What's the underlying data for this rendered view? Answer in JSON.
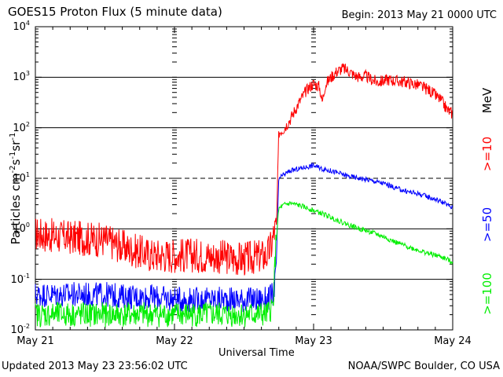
{
  "header": {
    "title": "GOES15 Proton Flux (5 minute data)",
    "begin": "Begin: 2013 May 21 0000 UTC"
  },
  "footer": {
    "updated": "Updated 2013 May 23 23:56:02 UTC",
    "credit": "NOAA/SWPC Boulder, CO USA"
  },
  "colors": {
    "ge10": "#ff0000",
    "ge50": "#0000ff",
    "ge100": "#00ee00",
    "grid": "#000000"
  },
  "chart_data": {
    "type": "line",
    "title": "GOES15 Proton Flux (5 minute data)",
    "xlabel": "Universal Time",
    "ylabel": "Particles cm⁻²s⁻¹sr⁻¹",
    "ylabel_parts": {
      "base": "Particles cm",
      "e1": "-2",
      "mid1": "s",
      "e2": "-1",
      "mid2": "sr",
      "e3": "-1"
    },
    "yscale": "log",
    "ylim": [
      0.01,
      10000
    ],
    "xlim": [
      0,
      72
    ],
    "x_unit": "hours since 2013 May 21 0000 UTC",
    "x_ticks": [
      {
        "x": 0,
        "label": "May 21"
      },
      {
        "x": 24,
        "label": "May 22"
      },
      {
        "x": 48,
        "label": "May 23"
      },
      {
        "x": 72,
        "label": "May 24"
      }
    ],
    "y_ticks": [
      {
        "exp": -2,
        "label": "10",
        "sup": "-2"
      },
      {
        "exp": -1,
        "label": "10",
        "sup": "-1"
      },
      {
        "exp": 0,
        "label": "10",
        "sup": "0"
      },
      {
        "exp": 1,
        "label": "10",
        "sup": "1"
      },
      {
        "exp": 2,
        "label": "10",
        "sup": "2"
      },
      {
        "exp": 3,
        "label": "10",
        "sup": "3"
      },
      {
        "exp": 4,
        "label": "10",
        "sup": "4"
      }
    ],
    "dashed_gridline_at": 10,
    "solid_gridlines_at": [
      0.1,
      1,
      100,
      1000
    ],
    "legend": ">=10 MeV, >=50, >=100 (right side, rotated)",
    "series": [
      {
        "name": ">=10 MeV",
        "label": ">=10",
        "unit_label": "MeV",
        "color": "#ff0000",
        "noise": 0.12,
        "x": [
          0,
          4,
          8,
          12,
          14,
          16,
          18,
          20,
          24,
          28,
          32,
          36,
          40,
          40.8,
          41.2,
          41.6,
          42,
          43,
          44,
          45,
          46,
          47,
          48,
          49,
          49.5,
          50,
          51,
          52,
          53,
          54,
          55,
          56,
          57,
          58,
          59,
          60,
          61,
          62,
          64,
          66,
          68,
          70,
          71,
          72
        ],
        "y": [
          0.8,
          0.7,
          0.65,
          0.6,
          0.5,
          0.4,
          0.35,
          0.3,
          0.3,
          0.3,
          0.28,
          0.25,
          0.3,
          0.5,
          0.9,
          1.1,
          80,
          100,
          150,
          250,
          400,
          600,
          750,
          650,
          320,
          700,
          1000,
          1300,
          1500,
          1350,
          1100,
          1000,
          1050,
          900,
          800,
          850,
          900,
          850,
          800,
          700,
          550,
          350,
          230,
          190
        ]
      },
      {
        "name": ">=50 MeV",
        "label": ">=50",
        "color": "#0000ff",
        "noise": 0.05,
        "x": [
          0,
          4,
          8,
          12,
          16,
          20,
          24,
          28,
          32,
          36,
          40,
          41,
          41.5,
          42,
          43,
          44,
          46,
          48,
          49,
          50,
          51,
          52,
          54,
          56,
          58,
          60,
          62,
          64,
          66,
          68,
          70,
          72
        ],
        "y": [
          0.05,
          0.05,
          0.05,
          0.05,
          0.045,
          0.045,
          0.04,
          0.04,
          0.04,
          0.04,
          0.04,
          0.05,
          0.12,
          10,
          12,
          14,
          16,
          18,
          16,
          15,
          14,
          13,
          11,
          10,
          9,
          8,
          6.5,
          5.5,
          5,
          4.2,
          3.5,
          2.6
        ]
      },
      {
        "name": ">=100 MeV",
        "label": ">=100",
        "color": "#00ee00",
        "noise": 0.05,
        "x": [
          0,
          4,
          8,
          12,
          16,
          20,
          24,
          28,
          32,
          36,
          40,
          41,
          41.5,
          42,
          43,
          44,
          46,
          48,
          50,
          52,
          54,
          56,
          58,
          60,
          62,
          64,
          66,
          68,
          70,
          72
        ],
        "y": [
          0.02,
          0.02,
          0.02,
          0.02,
          0.02,
          0.02,
          0.02,
          0.02,
          0.02,
          0.02,
          0.02,
          0.03,
          0.5,
          2.5,
          3,
          3.2,
          2.8,
          2.3,
          1.9,
          1.5,
          1.2,
          1.0,
          0.85,
          0.7,
          0.55,
          0.45,
          0.38,
          0.32,
          0.28,
          0.22
        ]
      }
    ]
  }
}
